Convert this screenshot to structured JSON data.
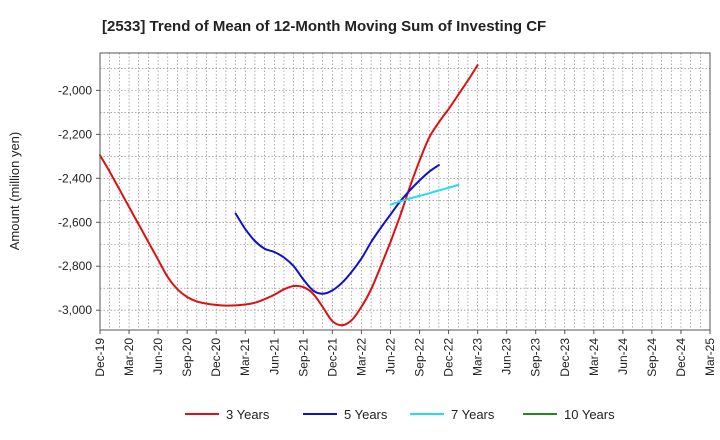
{
  "chart_data": {
    "type": "line",
    "title": "[2533]  Trend of Mean of 12-Month Moving Sum of Investing CF",
    "xlabel": "",
    "ylabel": "Amount (million yen)",
    "ylim": [
      -3090,
      -1830
    ],
    "yticks": [
      -3000,
      -2800,
      -2600,
      -2400,
      -2200,
      -2000
    ],
    "ytick_labels": [
      "-3,000",
      "-2,800",
      "-2,600",
      "-2,400",
      "-2,200",
      "-2,000"
    ],
    "x_tick_labels": [
      "Dec-19",
      "Mar-20",
      "Jun-20",
      "Sep-20",
      "Dec-20",
      "Mar-21",
      "Jun-21",
      "Sep-21",
      "Dec-21",
      "Mar-22",
      "Jun-22",
      "Sep-22",
      "Dec-22",
      "Mar-23",
      "Jun-23",
      "Sep-23",
      "Dec-23",
      "Mar-24",
      "Jun-24",
      "Sep-24",
      "Dec-24",
      "Mar-25"
    ],
    "grid": true,
    "legend_position": "bottom",
    "series": [
      {
        "name": "3 Years",
        "color": "#dd1111",
        "start_index": 0,
        "values": [
          -2295,
          -2370,
          -2450,
          -2530,
          -2610,
          -2690,
          -2770,
          -2850,
          -2905,
          -2940,
          -2960,
          -2970,
          -2976,
          -2979,
          -2978,
          -2974,
          -2966,
          -2950,
          -2930,
          -2905,
          -2890,
          -2895,
          -2925,
          -2985,
          -3050,
          -3068,
          -3045,
          -2985,
          -2905,
          -2800,
          -2690,
          -2570,
          -2440,
          -2320,
          -2215,
          -2145,
          -2085,
          -2020,
          -1955,
          -1885
        ]
      },
      {
        "name": "5 Years",
        "color": "#1111cc",
        "start_index": 14,
        "values": [
          -2560,
          -2630,
          -2685,
          -2720,
          -2735,
          -2760,
          -2800,
          -2860,
          -2910,
          -2925,
          -2910,
          -2875,
          -2825,
          -2765,
          -2690,
          -2625,
          -2565,
          -2505,
          -2455,
          -2410,
          -2370,
          -2340
        ]
      },
      {
        "name": "7 Years",
        "color": "#22ddee",
        "start_index": 30,
        "values": [
          -2520,
          -2505,
          -2492,
          -2480,
          -2468,
          -2455,
          -2443,
          -2430
        ]
      },
      {
        "name": "10 Years",
        "color": "#228822",
        "start_index": 0,
        "values": []
      }
    ]
  }
}
